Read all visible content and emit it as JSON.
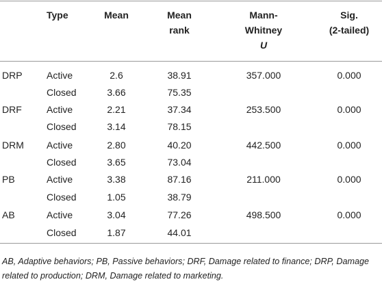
{
  "header": {
    "type": "Type",
    "mean": "Mean",
    "mean_rank": [
      "Mean",
      "rank"
    ],
    "mann_whitney": [
      "Mann-",
      "Whitney",
      "U"
    ],
    "sig": [
      "Sig.",
      "(2-tailed)"
    ]
  },
  "groups": [
    {
      "label": "DRP",
      "u": "357.000",
      "sig": "0.000",
      "rows": [
        {
          "type": "Active",
          "mean": "2.6",
          "rank": "38.91"
        },
        {
          "type": "Closed",
          "mean": "3.66",
          "rank": "75.35"
        }
      ]
    },
    {
      "label": "DRF",
      "u": "253.500",
      "sig": "0.000",
      "rows": [
        {
          "type": "Active",
          "mean": "2.21",
          "rank": "37.34"
        },
        {
          "type": "Closed",
          "mean": "3.14",
          "rank": "78.15"
        }
      ]
    },
    {
      "label": "DRM",
      "u": "442.500",
      "sig": "0.000",
      "rows": [
        {
          "type": "Active",
          "mean": "2.80",
          "rank": "40.20"
        },
        {
          "type": "Closed",
          "mean": "3.65",
          "rank": "73.04"
        }
      ]
    },
    {
      "label": "PB",
      "u": "211.000",
      "sig": "0.000",
      "rows": [
        {
          "type": "Active",
          "mean": "3.38",
          "rank": "87.16"
        },
        {
          "type": "Closed",
          "mean": "1.05",
          "rank": "38.79"
        }
      ]
    },
    {
      "label": "AB",
      "u": "498.500",
      "sig": "0.000",
      "rows": [
        {
          "type": "Active",
          "mean": "3.04",
          "rank": "77.26"
        },
        {
          "type": "Closed",
          "mean": "1.87",
          "rank": "44.01"
        }
      ]
    }
  ],
  "footnote": "AB, Adaptive behaviors; PB, Passive behaviors; DRF, Damage related to finance; DRP, Damage related to production; DRM, Damage related to marketing."
}
